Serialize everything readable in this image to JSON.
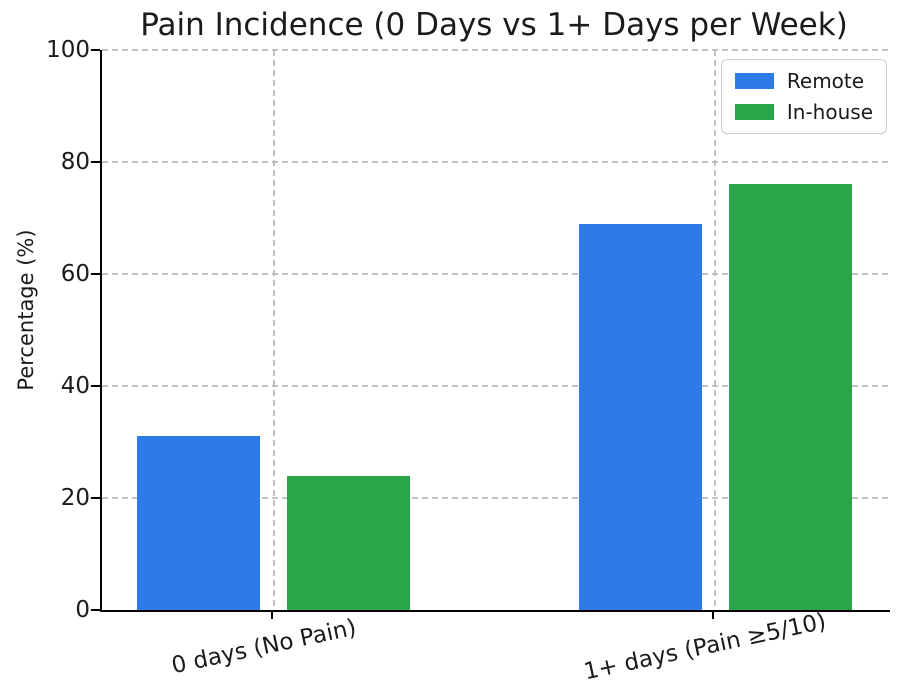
{
  "chart_data": {
    "type": "bar",
    "title": "Pain Incidence (0 Days vs 1+ Days per Week)",
    "ylabel": "Percentage (%)",
    "xlabel": "",
    "categories": [
      "0 days (No Pain)",
      "1+ days (Pain ≥5/10)"
    ],
    "series": [
      {
        "name": "Remote",
        "color": "#2e7be8",
        "values": [
          31,
          69
        ]
      },
      {
        "name": "In-house",
        "color": "#2aa64a",
        "values": [
          24,
          76
        ]
      }
    ],
    "ylim": [
      0,
      100
    ],
    "yticks": [
      0,
      20,
      40,
      60,
      80,
      100
    ],
    "grid": true,
    "grid_color": "#b8b8b8",
    "axis_color": "#000000",
    "legend": {
      "position": "upper right"
    },
    "xtick_rotation_deg": -12
  }
}
